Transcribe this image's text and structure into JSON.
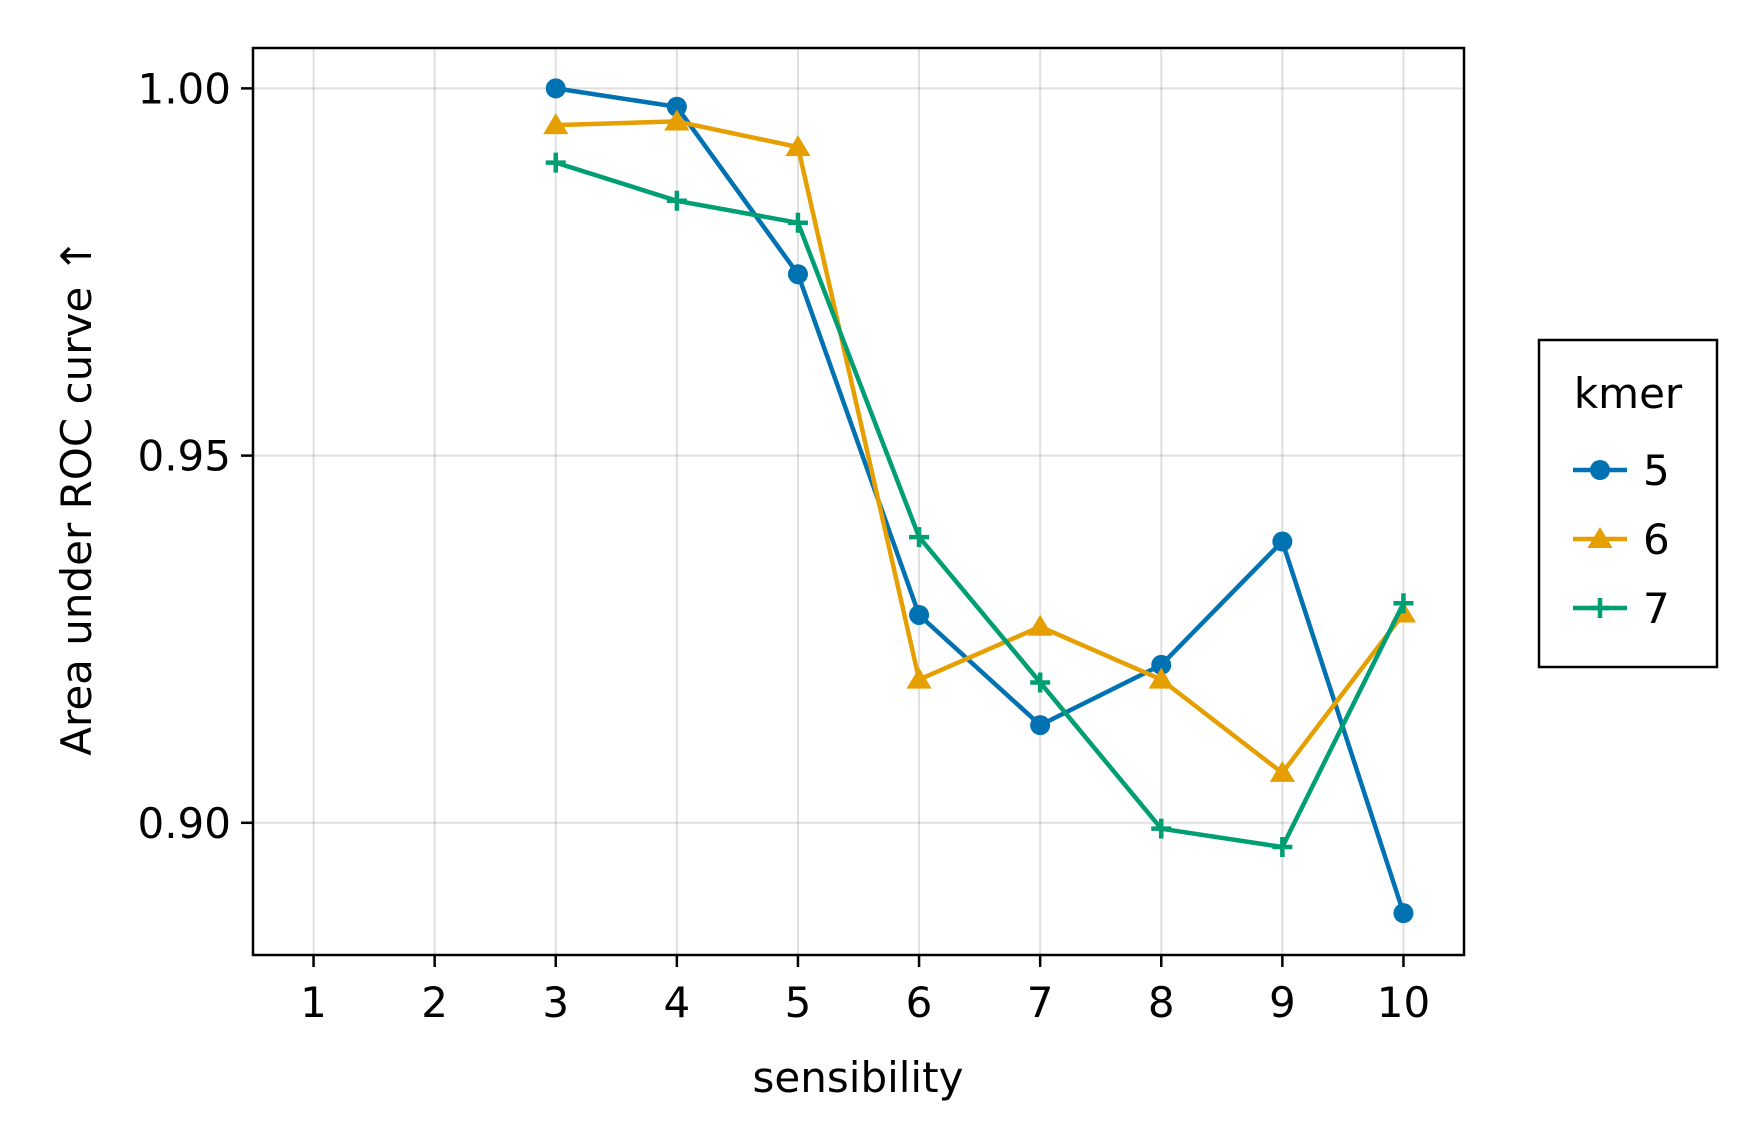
{
  "chart_data": {
    "type": "line",
    "xlabel": "sensibility",
    "ylabel": "Area under ROC curve ↑",
    "xlim": [
      0.5,
      10.5
    ],
    "ylim": [
      0.882,
      1.0055
    ],
    "xticks": [
      1,
      2,
      3,
      4,
      5,
      6,
      7,
      8,
      9,
      10
    ],
    "xtick_labels": [
      "1",
      "2",
      "3",
      "4",
      "5",
      "6",
      "7",
      "8",
      "9",
      "10"
    ],
    "yticks": [
      0.9,
      0.95,
      1.0
    ],
    "ytick_labels": [
      "0.90",
      "0.95",
      "1.00"
    ],
    "grid": true,
    "legend": {
      "title": "kmer",
      "position": "right"
    },
    "series": [
      {
        "name": "5",
        "color": "#0072b2",
        "marker": "circle",
        "x": [
          3,
          4,
          5,
          6,
          7,
          8,
          9,
          10
        ],
        "y": [
          1.0,
          0.9975,
          0.9747,
          0.9283,
          0.9133,
          0.9215,
          0.9383,
          0.8877
        ]
      },
      {
        "name": "6",
        "color": "#e69f00",
        "marker": "triangle",
        "x": [
          3,
          4,
          5,
          6,
          7,
          8,
          9,
          10
        ],
        "y": [
          0.995,
          0.9955,
          0.992,
          0.9195,
          0.9267,
          0.9195,
          0.9068,
          0.9285
        ]
      },
      {
        "name": "7",
        "color": "#009e73",
        "marker": "cross",
        "x": [
          3,
          4,
          5,
          6,
          7,
          8,
          9,
          10
        ],
        "y": [
          0.9899,
          0.9847,
          0.9817,
          0.9389,
          0.9191,
          0.8992,
          0.8967,
          0.9299
        ]
      }
    ]
  }
}
